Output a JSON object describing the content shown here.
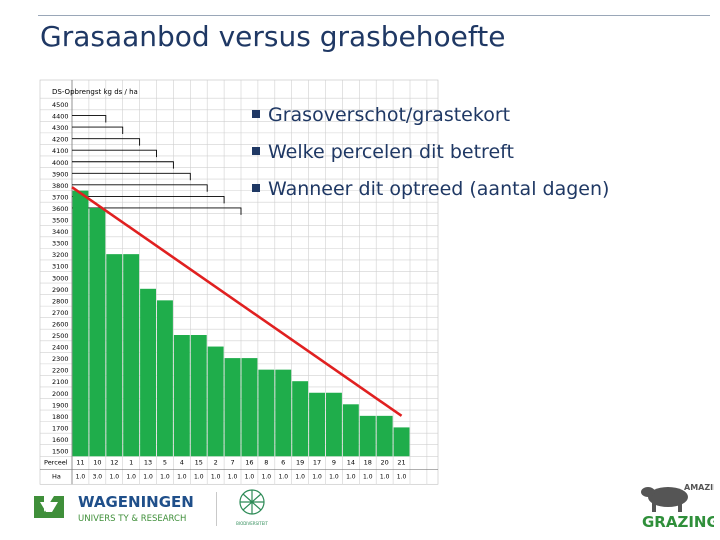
{
  "slide": {
    "title": "Grasaanbod versus grasbehoefte",
    "bullets": [
      "Grasoverschot/grastekort",
      "Welke percelen dit betreft",
      "Wanneer dit optreed (aantal dagen)"
    ]
  },
  "logos": {
    "wageningen_line1": "WAGENINGEN",
    "wageningen_line2": "UNIVERS TY & RESEARCH",
    "mid_logo_text": "BIODIVERSITEIT",
    "amazing_grazing_line1": "AMAZING",
    "amazing_grazing_line2": "GRAZING"
  },
  "colors": {
    "title": "#1f3864",
    "bars": "#1fad4b",
    "demand_line": "#e02020",
    "wur_green": "#3f8f3a",
    "wur_blue": "#1f4f8a"
  },
  "chart_data": {
    "type": "bar",
    "ylabel": "DS-Opbrengst kg ds / ha",
    "yticks": [
      4500,
      4400,
      4300,
      4200,
      4100,
      4000,
      3900,
      3800,
      3700,
      3600,
      3500,
      3400,
      3300,
      3200,
      3100,
      3000,
      2900,
      2800,
      2700,
      2600,
      2500,
      2400,
      2300,
      2200,
      2100,
      2000,
      1900,
      1800,
      1700,
      1600,
      1500
    ],
    "ytick_labels": [
      "4500",
      "4400",
      "4300",
      "4200",
      "4100",
      "4000",
      "3900",
      "3800",
      "3700",
      "3600",
      "3500",
      "3400",
      "3300",
      "3200",
      "3100",
      "3000",
      "2900",
      "2800",
      "2700",
      "2600",
      "2500",
      "2400",
      "2300",
      "2200",
      "2100",
      "2000",
      "1900",
      "1800",
      "1700",
      "1600",
      "1500"
    ],
    "ylim": [
      1500,
      4500
    ],
    "row_labels": [
      "Perceel",
      "Ha"
    ],
    "categories": [
      "11",
      "10",
      "12",
      "1",
      "13",
      "5",
      "4",
      "15",
      "2",
      "7",
      "16",
      "8",
      "6",
      "19",
      "17",
      "9",
      "14",
      "18",
      "20",
      "21"
    ],
    "hectares": [
      "1.0",
      "3.0",
      "1.0",
      "1.0",
      "1.0",
      "1.0",
      "1.0",
      "1.0",
      "1.0",
      "1.0",
      "1.0",
      "1.0",
      "1.0",
      "1.0",
      "1.0",
      "1.0",
      "1.0",
      "1.0",
      "1.0",
      "1.0"
    ],
    "values": [
      3750,
      3600,
      3200,
      3200,
      2900,
      2800,
      2500,
      2500,
      2400,
      2300,
      2300,
      2200,
      2200,
      2100,
      2000,
      2000,
      1900,
      1800,
      1800,
      1700
    ],
    "previous_levels": [
      4400,
      4300,
      4200,
      4100,
      4000,
      3900,
      3800,
      3700,
      3600
    ],
    "demand_line": {
      "from": [
        0,
        3780
      ],
      "to": [
        19.5,
        1800
      ]
    }
  }
}
